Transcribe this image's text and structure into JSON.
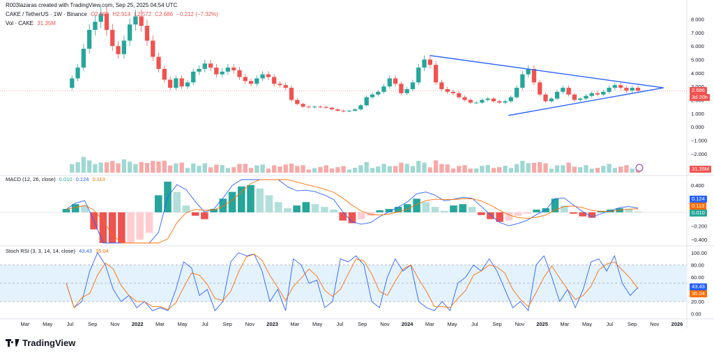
{
  "header": {
    "author_line": "R003lazaras created with TradingView.com, Sep 25, 2025 04:54 UTC",
    "symbol": "CAKE / TetherUS · 1W · Binance",
    "ohlc": {
      "o": "O2.898",
      "h": "H2.914",
      "l": "L2.572",
      "c": "C2.686",
      "chg": "−0.212 (−7.32%)"
    },
    "vol_label": "Vol · CAKE",
    "vol_value": "31.35M"
  },
  "colors": {
    "up": "#26a69a",
    "down": "#ef5350",
    "macd": "#2962ff",
    "signal": "#ff6d00",
    "trend": "#2962ff",
    "rsi_band": "#e3f2fd"
  },
  "price_badges": {
    "last": "2.686",
    "countdown": "3d 20h",
    "volume": "31.35M"
  },
  "macd_label": {
    "name": "MACD (12, 26, close)",
    "hist": "0.010",
    "macd": "0.124",
    "signal": "0.113"
  },
  "macd_badges": {
    "macd": "0.124",
    "signal": "0.113",
    "hist": "0.010"
  },
  "rsi_label": {
    "name": "Stoch RSI (3, 3, 14, 14, close)",
    "k": "43.43",
    "d": "35.04"
  },
  "rsi_badges": {
    "k": "43.43",
    "d": "35.04"
  },
  "brand": "TradingView",
  "chart_data": [
    {
      "type": "candlestick",
      "title": "CAKE / TetherUS · 1W · Binance",
      "y_ticks": [
        "8.000",
        "7.000",
        "6.000",
        "5.000",
        "4.000",
        "3.000",
        "2.000",
        "1.000",
        "0.000",
        "−1.000",
        "−2.000",
        "−3.000"
      ],
      "ylim": [
        -3.4,
        8.9
      ],
      "x_ticks": [
        "Mar",
        "May",
        "Jul",
        "Sep",
        "Nov",
        "2022",
        "Mar",
        "May",
        "Jul",
        "Sep",
        "Nov",
        "2023",
        "Mar",
        "May",
        "Jul",
        "Sep",
        "Nov",
        "2024",
        "Mar",
        "May",
        "Jul",
        "Sep",
        "Nov",
        "2025",
        "Mar",
        "May",
        "Jul",
        "Sep",
        "Nov",
        "2026"
      ],
      "close_path": [
        2.9,
        3.6,
        4.4,
        5.8,
        7.2,
        7.8,
        8.4,
        7.2,
        6.0,
        5.4,
        6.4,
        7.6,
        8.2,
        7.5,
        6.4,
        5.2,
        4.3,
        3.5,
        2.9,
        3.6,
        3.0,
        3.3,
        4.1,
        4.3,
        4.7,
        4.4,
        3.9,
        4.1,
        4.4,
        4.2,
        3.7,
        3.4,
        3.2,
        3.6,
        3.9,
        3.7,
        3.2,
        3.1,
        2.9,
        2.0,
        1.7,
        1.5,
        1.45,
        1.5,
        1.48,
        1.42,
        1.3,
        1.2,
        1.15,
        1.2,
        1.3,
        1.6,
        2.2,
        2.4,
        2.6,
        3.0,
        3.6,
        3.2,
        2.5,
        2.8,
        3.3,
        4.4,
        5.0,
        4.6,
        3.3,
        2.8,
        2.6,
        2.5,
        2.2,
        2.0,
        1.8,
        1.8,
        2.0,
        2.1,
        1.9,
        1.8,
        1.9,
        2.2,
        2.9,
        3.9,
        4.3,
        3.3,
        2.4,
        1.9,
        2.1,
        2.6,
        2.9,
        2.4,
        2.0,
        2.1,
        2.3,
        2.5,
        2.4,
        2.6,
        2.9,
        3.1,
        2.9,
        2.7,
        2.9,
        2.686
      ],
      "triangle_upper": [
        [
          "2024-03",
          "5.3"
        ],
        [
          "2025-10",
          "2.9"
        ]
      ],
      "triangle_lower": [
        [
          "2024-10",
          "0.85"
        ],
        [
          "2025-10",
          "2.9"
        ]
      ],
      "last_price": 2.686
    },
    {
      "type": "bar",
      "title": "Vol · CAKE",
      "last_value": "31.35M"
    },
    {
      "type": "bar+line",
      "title": "MACD (12, 26, close)",
      "y_ticks": [
        "0.400",
        "0.200",
        "0.000",
        "−0.200",
        "−0.400"
      ],
      "ylim": [
        -0.46,
        0.5
      ],
      "series": [
        {
          "name": "Histogram",
          "last": 0.01
        },
        {
          "name": "MACD",
          "last": 0.124
        },
        {
          "name": "Signal",
          "last": 0.113
        }
      ],
      "hist": [
        0.05,
        0.12,
        0.1,
        -0.25,
        -0.48,
        -0.55,
        -0.6,
        -0.5,
        -0.4,
        -0.3,
        0.25,
        0.45,
        0.3,
        0.1,
        -0.05,
        -0.1,
        0.05,
        0.2,
        0.3,
        0.38,
        0.4,
        0.35,
        0.25,
        0.15,
        0.06,
        0.1,
        0.15,
        0.12,
        0.08,
        0.04,
        -0.12,
        -0.16,
        -0.1,
        -0.05,
        0.03,
        0.05,
        0.08,
        0.12,
        0.2,
        0.15,
        0.08,
        0.02,
        0.1,
        0.12,
        0.08,
        -0.04,
        -0.1,
        -0.14,
        -0.12,
        -0.05,
        -0.02,
        0.04,
        0.06,
        0.2,
        0.1,
        -0.02,
        -0.06,
        -0.08,
        0.02,
        0.04,
        0.06,
        0.05,
        0.01
      ]
    },
    {
      "type": "line",
      "title": "Stoch RSI (3, 3, 14, 14, close)",
      "y_ticks": [
        "100.00",
        "80.00",
        "60.00",
        "40.00",
        "20.00",
        "0.00"
      ],
      "ylim": [
        -5,
        108
      ],
      "band": [
        20,
        80
      ],
      "series": [
        {
          "name": "K",
          "last": 43.43
        },
        {
          "name": "D",
          "last": 35.04
        }
      ],
      "k": [
        50,
        10,
        20,
        70,
        100,
        80,
        40,
        20,
        30,
        10,
        20,
        5,
        10,
        5,
        40,
        85,
        75,
        30,
        40,
        5,
        20,
        85,
        100,
        95,
        98,
        70,
        20,
        40,
        5,
        90,
        80,
        50,
        55,
        10,
        20,
        90,
        85,
        95,
        80,
        20,
        10,
        60,
        90,
        70,
        80,
        20,
        10,
        5,
        20,
        5,
        50,
        60,
        80,
        70,
        90,
        70,
        40,
        10,
        20,
        5,
        80,
        95,
        60,
        20,
        40,
        10,
        40,
        85,
        90,
        70,
        95,
        50,
        30,
        43
      ]
    }
  ]
}
